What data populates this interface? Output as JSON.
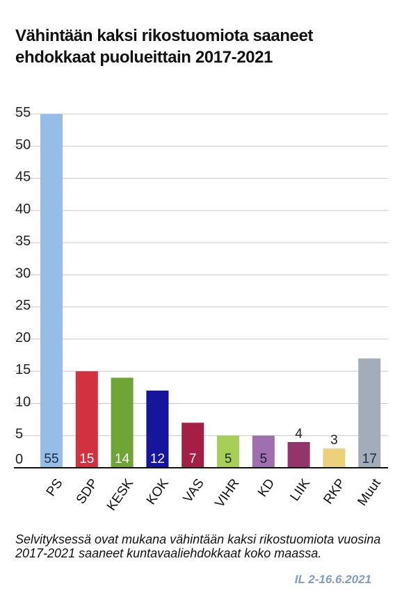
{
  "title": "Vähintään kaksi rikostuomiota saaneet ehdokkaat puolueittain 2017-2021",
  "note": "Selvityksessä ovat mukana vähintään kaksi rikostuomiota vuosina 2017-2021 saaneet kuntavaaliehdokkaat koko maassa.",
  "source": "IL 2-16.6.2021",
  "chart_data": {
    "type": "bar",
    "title": "Vähintään kaksi rikostuomiota saaneet ehdokkaat puolueittain 2017-2021",
    "xlabel": "",
    "ylabel": "",
    "categories": [
      "PS",
      "SDP",
      "KESK",
      "KOK",
      "VAS",
      "VIHR",
      "KD",
      "LIIK",
      "RKP",
      "Muut"
    ],
    "values": [
      55,
      15,
      14,
      12,
      7,
      5,
      5,
      4,
      3,
      17
    ],
    "value_labels": [
      "55",
      "15",
      "14",
      "12",
      "7",
      "5",
      "5",
      "4",
      "3",
      "17"
    ],
    "colors": [
      "#95bde6",
      "#d2323f",
      "#6ea534",
      "#15169c",
      "#a61d45",
      "#a7cf55",
      "#9f6fb0",
      "#93346c",
      "#ecd07a",
      "#a2adb8"
    ],
    "label_colors": [
      "#1a2a44",
      "#ffffff",
      "#ffffff",
      "#ffffff",
      "#ffffff",
      "#1a2a10",
      "#1a1a2a",
      "#222222",
      "#222222",
      "#1a2a44"
    ],
    "label_outside": [
      false,
      false,
      false,
      false,
      false,
      false,
      false,
      true,
      true,
      false
    ],
    "ylim": [
      0,
      55
    ],
    "yticks": [
      0,
      5,
      10,
      15,
      20,
      25,
      30,
      35,
      40,
      45,
      50,
      55
    ],
    "grid": true,
    "legend": "none"
  }
}
